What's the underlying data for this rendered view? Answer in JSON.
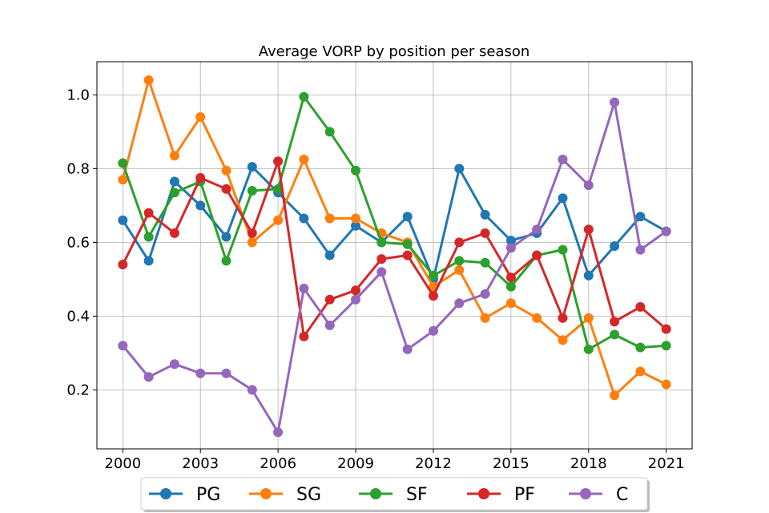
{
  "chart_data": {
    "type": "line",
    "title": "Average VORP by position per season",
    "xlabel": "",
    "ylabel": "",
    "x": [
      2000,
      2001,
      2002,
      2003,
      2004,
      2005,
      2006,
      2007,
      2008,
      2009,
      2010,
      2011,
      2012,
      2013,
      2014,
      2015,
      2016,
      2017,
      2018,
      2019,
      2020,
      2021
    ],
    "xlim": [
      1999.0,
      2022.0
    ],
    "ylim": [
      0.04,
      1.09
    ],
    "xticks": [
      2000,
      2003,
      2006,
      2009,
      2012,
      2015,
      2018,
      2021
    ],
    "xtick_labels": [
      "2000",
      "2003",
      "2006",
      "2009",
      "2012",
      "2015",
      "2018",
      "2021"
    ],
    "yticks": [
      0.2,
      0.4,
      0.6,
      0.8,
      1.0
    ],
    "ytick_labels": [
      "0.2",
      "0.4",
      "0.6",
      "0.8",
      "1.0"
    ],
    "grid": true,
    "legend_placement": "bottom-center",
    "series": [
      {
        "name": "PG",
        "color": "#1f77b4",
        "values": [
          0.66,
          0.55,
          0.765,
          0.7,
          0.615,
          0.805,
          0.735,
          0.665,
          0.565,
          0.645,
          0.6,
          0.67,
          0.5,
          0.8,
          0.675,
          0.605,
          0.625,
          0.72,
          0.51,
          0.59,
          0.67,
          0.63
        ]
      },
      {
        "name": "SG",
        "color": "#ff7f0e",
        "values": [
          0.77,
          1.04,
          0.835,
          0.94,
          0.795,
          0.6,
          0.66,
          0.825,
          0.665,
          0.665,
          0.625,
          0.6,
          0.48,
          0.525,
          0.395,
          0.435,
          0.395,
          0.335,
          0.395,
          0.185,
          0.25,
          0.215
        ]
      },
      {
        "name": "SF",
        "color": "#2ca02c",
        "values": [
          0.815,
          0.615,
          0.735,
          0.765,
          0.55,
          0.74,
          0.745,
          0.995,
          0.9,
          0.795,
          0.6,
          0.595,
          0.51,
          0.55,
          0.545,
          0.48,
          0.565,
          0.58,
          0.31,
          0.35,
          0.315,
          0.32
        ]
      },
      {
        "name": "PF",
        "color": "#d62728",
        "values": [
          0.54,
          0.68,
          0.625,
          0.775,
          0.745,
          0.625,
          0.82,
          0.345,
          0.445,
          0.47,
          0.555,
          0.565,
          0.455,
          0.6,
          0.625,
          0.505,
          0.565,
          0.395,
          0.635,
          0.385,
          0.425,
          0.365
        ]
      },
      {
        "name": "C",
        "color": "#9467bd",
        "values": [
          0.32,
          0.235,
          0.27,
          0.245,
          0.245,
          0.2,
          0.085,
          0.475,
          0.375,
          0.445,
          0.52,
          0.31,
          0.36,
          0.435,
          0.46,
          0.585,
          0.635,
          0.825,
          0.755,
          0.98,
          0.58,
          0.63
        ]
      }
    ]
  }
}
